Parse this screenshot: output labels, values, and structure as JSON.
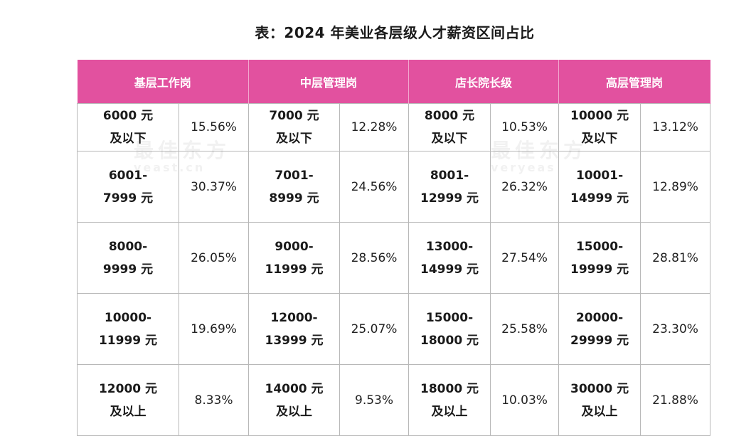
{
  "title": "表：2024 年美业各层级人才薪资区间占比",
  "watermark": {
    "text": "最佳东方",
    "sub_left": "yeast.cn",
    "sub_right": "veryeas"
  },
  "headers": [
    "基层工作岗",
    "中层管理岗",
    "店长院长级",
    "高层管理岗"
  ],
  "rows": [
    {
      "cells": [
        {
          "range_line1": "6000 元",
          "range_line2": "及以下",
          "pct": "15.56%"
        },
        {
          "range_line1": "7000 元",
          "range_line2": "及以下",
          "pct": "12.28%"
        },
        {
          "range_line1": "8000 元",
          "range_line2": "及以下",
          "pct": "10.53%"
        },
        {
          "range_line1": "10000 元",
          "range_line2": "及以下",
          "pct": "13.12%"
        }
      ]
    },
    {
      "cells": [
        {
          "range_line1": "6001-",
          "range_line2": "7999 元",
          "pct": "30.37%"
        },
        {
          "range_line1": "7001-",
          "range_line2": "8999 元",
          "pct": "24.56%"
        },
        {
          "range_line1": "8001-",
          "range_line2": "12999 元",
          "pct": "26.32%"
        },
        {
          "range_line1": "10001-",
          "range_line2": "14999 元",
          "pct": "12.89%"
        }
      ]
    },
    {
      "cells": [
        {
          "range_line1": "8000-",
          "range_line2": "9999 元",
          "pct": "26.05%"
        },
        {
          "range_line1": "9000-",
          "range_line2": "11999 元",
          "pct": "28.56%"
        },
        {
          "range_line1": "13000-",
          "range_line2": "14999 元",
          "pct": "27.54%"
        },
        {
          "range_line1": "15000-",
          "range_line2": "19999 元",
          "pct": "28.81%"
        }
      ]
    },
    {
      "cells": [
        {
          "range_line1": "10000-",
          "range_line2": "11999 元",
          "pct": "19.69%"
        },
        {
          "range_line1": "12000-",
          "range_line2": "13999 元",
          "pct": "25.07%"
        },
        {
          "range_line1": "15000-",
          "range_line2": "18000 元",
          "pct": "25.58%"
        },
        {
          "range_line1": "20000-",
          "range_line2": "29999 元",
          "pct": "23.30%"
        }
      ]
    },
    {
      "cells": [
        {
          "range_line1": "12000 元",
          "range_line2": "及以上",
          "pct": "8.33%"
        },
        {
          "range_line1": "14000 元",
          "range_line2": "及以上",
          "pct": "9.53%"
        },
        {
          "range_line1": "18000 元",
          "range_line2": "及以上",
          "pct": "10.03%"
        },
        {
          "range_line1": "30000 元",
          "range_line2": "及以上",
          "pct": "21.88%"
        }
      ]
    }
  ]
}
